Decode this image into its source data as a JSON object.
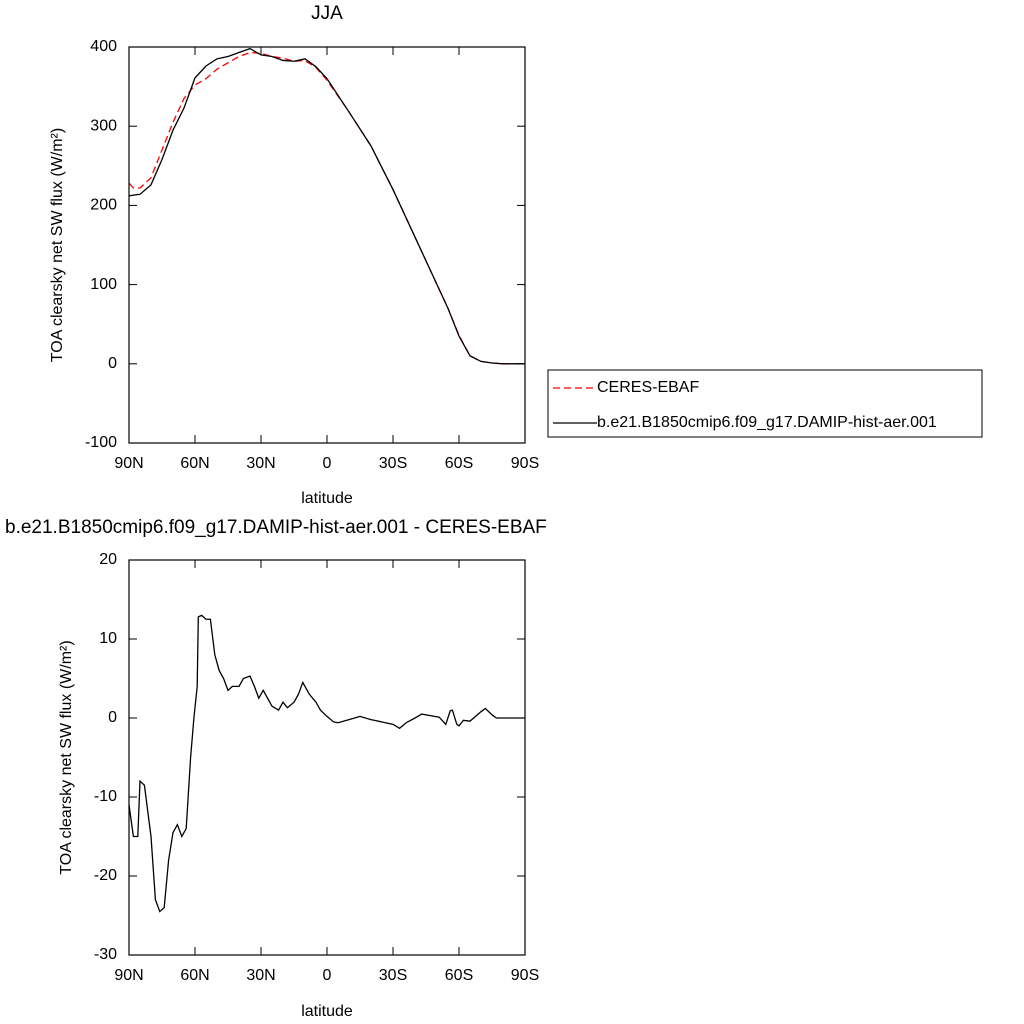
{
  "chart_data": [
    {
      "type": "line",
      "title": "JJA",
      "xlabel": "latitude",
      "ylabel": "TOA clearsky net SW flux (W/m²)",
      "x": [
        90,
        88,
        85,
        80,
        75,
        70,
        65,
        60,
        55,
        50,
        45,
        40,
        35,
        30,
        25,
        20,
        15,
        10,
        5,
        0,
        -10,
        -20,
        -30,
        -40,
        -50,
        -55,
        -60,
        -65,
        -70,
        -75,
        -80,
        -85,
        -90
      ],
      "series": [
        {
          "name": "CERES-EBAF",
          "color": "#ff0000",
          "linestyle": "dashed",
          "values": [
            228,
            222,
            222,
            235,
            270,
            305,
            335,
            352,
            360,
            372,
            380,
            388,
            393,
            392,
            388,
            386,
            382,
            383,
            374,
            358,
            318,
            275,
            220,
            160,
            100,
            70,
            36,
            10,
            3,
            1,
            0,
            0,
            0
          ]
        },
        {
          "name": "b.e21.B1850cmip6.f09_g17.DAMIP-hist-aer.001",
          "color": "#000000",
          "linestyle": "solid",
          "values": [
            212,
            213,
            214,
            226,
            258,
            295,
            323,
            361,
            376,
            385,
            388,
            393,
            398,
            390,
            388,
            383,
            382,
            385,
            375,
            360,
            318,
            275,
            220,
            160,
            100,
            70,
            35,
            10,
            3,
            1,
            0,
            0,
            0
          ]
        }
      ],
      "xlim": [
        90,
        -90
      ],
      "ylim": [
        -100,
        400
      ],
      "xticks": [
        {
          "value": 90,
          "label": "90N"
        },
        {
          "value": 60,
          "label": "60N"
        },
        {
          "value": 30,
          "label": "30N"
        },
        0,
        {
          "value": -30,
          "label": "30S"
        },
        {
          "value": -60,
          "label": "60S"
        },
        {
          "value": -90,
          "label": "90S"
        }
      ],
      "yticks": [
        -100,
        0,
        100,
        200,
        300,
        400
      ],
      "legend": "outside-right"
    },
    {
      "type": "line",
      "title": "b.e21.B1850cmip6.f09_g17.DAMIP-hist-aer.001 - CERES-EBAF",
      "xlabel": "latitude",
      "ylabel": "TOA clearsky net SW flux (W/m²)",
      "x": [
        90,
        88,
        86,
        85,
        83,
        80,
        78,
        76,
        74,
        72,
        70,
        68,
        66,
        64,
        62,
        60.5,
        59,
        58.5,
        57,
        55,
        53,
        51,
        49,
        47,
        45,
        43,
        40,
        38,
        35,
        33,
        31,
        29,
        27,
        25,
        22,
        20,
        18,
        15,
        13,
        11,
        10,
        8,
        5,
        3,
        0,
        -3,
        -5,
        -10,
        -15,
        -20,
        -25,
        -30,
        -33,
        -36,
        -40,
        -43,
        -47,
        -51,
        -54,
        -56,
        -57,
        -59,
        -60,
        -62,
        -65,
        -70,
        -72,
        -75,
        -77,
        -90
      ],
      "series": [
        {
          "color": "#000000",
          "linestyle": "solid",
          "values": [
            -11,
            -15,
            -15,
            -8,
            -8.5,
            -15,
            -23,
            -24.5,
            -24,
            -18,
            -14.5,
            -13.5,
            -15,
            -14,
            -5,
            0,
            4,
            12.8,
            13,
            12.5,
            12.5,
            8,
            6,
            5,
            3.5,
            4,
            4,
            5,
            5.3,
            4,
            2.5,
            3.5,
            2.5,
            1.5,
            1,
            2,
            1.3,
            2,
            3,
            4.5,
            4,
            3,
            2,
            1,
            0.2,
            -0.5,
            -0.6,
            -0.2,
            0.2,
            -0.2,
            -0.5,
            -0.8,
            -1.3,
            -0.6,
            0,
            0.5,
            0.3,
            0.1,
            -0.8,
            0.9,
            1,
            -0.8,
            -1,
            -0.3,
            -0.4,
            0.8,
            1.2,
            0.4,
            0,
            0
          ]
        }
      ],
      "xlim": [
        90,
        -90
      ],
      "ylim": [
        -30,
        20
      ],
      "xticks": [
        {
          "value": 90,
          "label": "90N"
        },
        {
          "value": 60,
          "label": "60N"
        },
        {
          "value": 30,
          "label": "30N"
        },
        0,
        {
          "value": -30,
          "label": "30S"
        },
        {
          "value": -60,
          "label": "60S"
        },
        {
          "value": -90,
          "label": "90S"
        }
      ],
      "yticks": [
        -30,
        -20,
        -10,
        0,
        10,
        20
      ]
    }
  ]
}
